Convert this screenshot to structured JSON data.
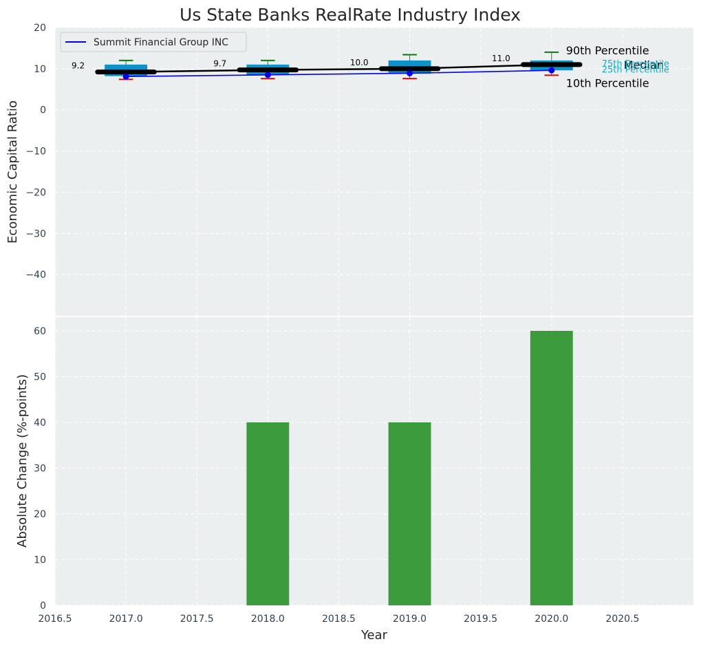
{
  "chart_data": {
    "title": "Us State Banks RealRate Industry Index",
    "colors": {
      "background": "#ebeff0",
      "box": "#0d93c9",
      "company_line": "#0000ee",
      "median_line": "#000000",
      "p90_whisker": "#008000",
      "p10_whisker": "#e00000",
      "bar": "#3a9a3c",
      "quartile_label": "#17a9c6"
    },
    "top": {
      "type": "box",
      "ylabel": "Economic Capital Ratio",
      "ylim": [
        -50,
        20
      ],
      "yticks": [
        20,
        10,
        0,
        -10,
        -20,
        -30,
        -40
      ],
      "ytick_labels": [
        "20",
        "10",
        "0",
        "−10",
        "−20",
        "−30",
        "−40"
      ],
      "legend": {
        "label": "Summit Financial Group INC",
        "loc": "upper left"
      },
      "years": [
        2017,
        2018,
        2019,
        2020
      ],
      "median": [
        9.2,
        9.7,
        10.0,
        11.0
      ],
      "median_labels": [
        "9.2",
        "9.7",
        "10.0",
        "11.0"
      ],
      "q1": [
        8.2,
        8.5,
        8.8,
        9.6
      ],
      "q3": [
        11.0,
        11.0,
        12.0,
        12.0
      ],
      "p10": [
        7.4,
        7.6,
        7.6,
        8.4
      ],
      "p90": [
        12.0,
        12.0,
        13.4,
        14.0
      ],
      "company": [
        8.1,
        8.5,
        8.9,
        9.6
      ],
      "labels": {
        "p90": "90th Percentile",
        "median": "Median",
        "p10": "10th Percentile",
        "q3": "75th Percentile",
        "q1": "25th Percentile"
      }
    },
    "bottom": {
      "type": "bar",
      "ylabel": "Absolute Change (%-points)",
      "xlabel": "Year",
      "ylim": [
        0,
        63
      ],
      "yticks": [
        0,
        10,
        20,
        30,
        40,
        50,
        60
      ],
      "ytick_labels": [
        "0",
        "10",
        "20",
        "30",
        "40",
        "50",
        "60"
      ],
      "x": [
        2017,
        2018,
        2019,
        2020
      ],
      "values": [
        0,
        40,
        40,
        60
      ]
    },
    "xlim": [
      2016.5,
      2021.0
    ],
    "xticks": [
      2016.5,
      2017.0,
      2017.5,
      2018.0,
      2018.5,
      2019.0,
      2019.5,
      2020.0,
      2020.5
    ],
    "xtick_labels": [
      "2016.5",
      "2017.0",
      "2017.5",
      "2018.0",
      "2018.5",
      "2019.0",
      "2019.5",
      "2020.0",
      "2020.5"
    ]
  }
}
